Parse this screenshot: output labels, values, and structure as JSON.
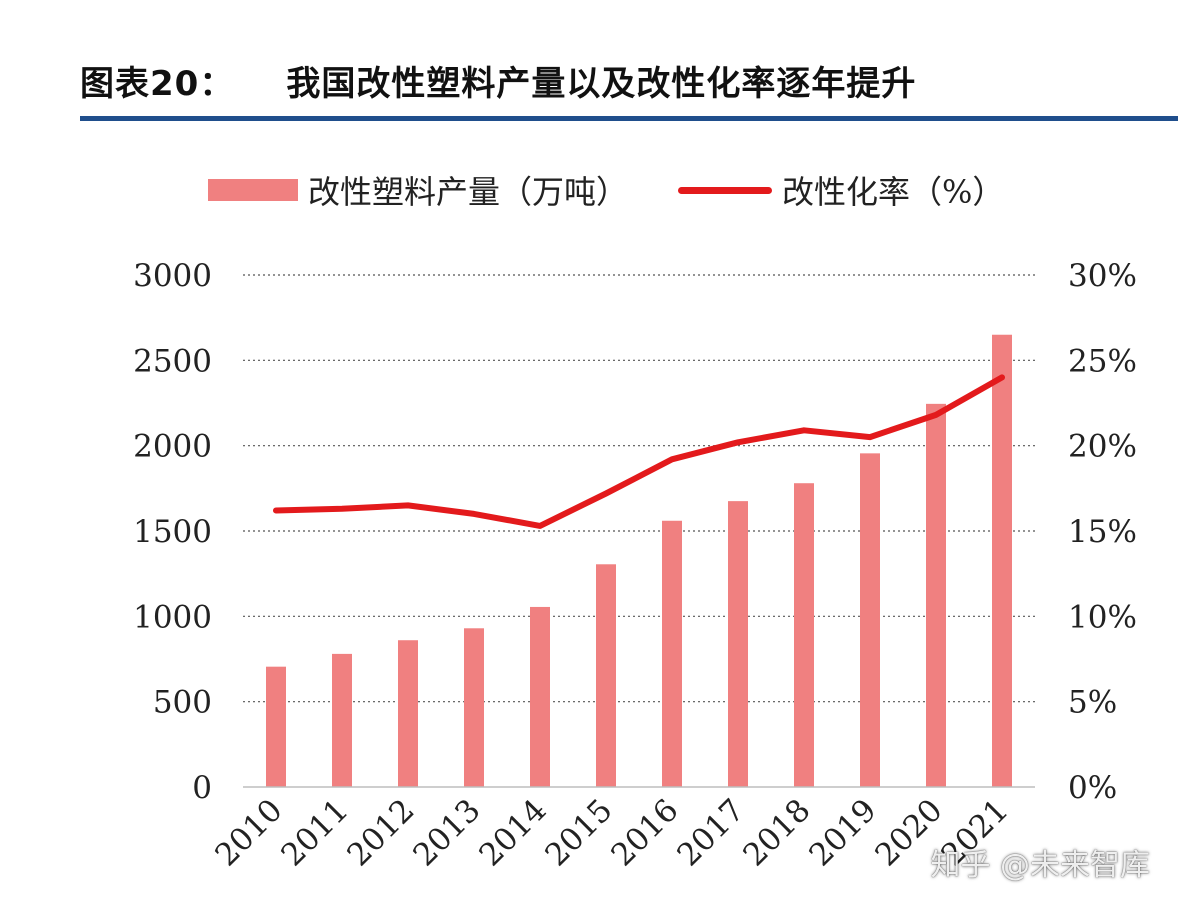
{
  "figure": {
    "label": "图表20：",
    "title": "我国改性塑料产量以及改性化率逐年提升"
  },
  "legend": {
    "bar_label": "改性塑料产量（万吨）",
    "line_label": "改性化率（%）"
  },
  "watermark": "知乎 @未来智库",
  "chart_data": {
    "type": "bar",
    "categories": [
      "2010",
      "2011",
      "2012",
      "2013",
      "2014",
      "2015",
      "2016",
      "2017",
      "2018",
      "2019",
      "2020",
      "2021"
    ],
    "series": [
      {
        "name": "改性塑料产量（万吨）",
        "type": "bar",
        "axis": "left",
        "values": [
          705,
          780,
          860,
          930,
          1055,
          1305,
          1560,
          1675,
          1780,
          1955,
          2245,
          2650
        ]
      },
      {
        "name": "改性化率（%）",
        "type": "line",
        "axis": "right",
        "values": [
          16.2,
          16.3,
          16.5,
          16.0,
          15.3,
          17.2,
          19.2,
          20.2,
          20.9,
          20.5,
          21.8,
          24.0
        ]
      }
    ],
    "y_left": {
      "lim": [
        0,
        3000
      ],
      "ticks": [
        0,
        500,
        1000,
        1500,
        2000,
        2500,
        3000
      ]
    },
    "y_right": {
      "lim": [
        0,
        30
      ],
      "ticks": [
        "0%",
        "5%",
        "10%",
        "15%",
        "20%",
        "25%",
        "30%"
      ]
    },
    "grid": "dotted horizontal",
    "legend_position": "top",
    "colors": {
      "bar": "#f08080",
      "line": "#e31a1c",
      "title_rule": "#1f4e8c"
    }
  }
}
